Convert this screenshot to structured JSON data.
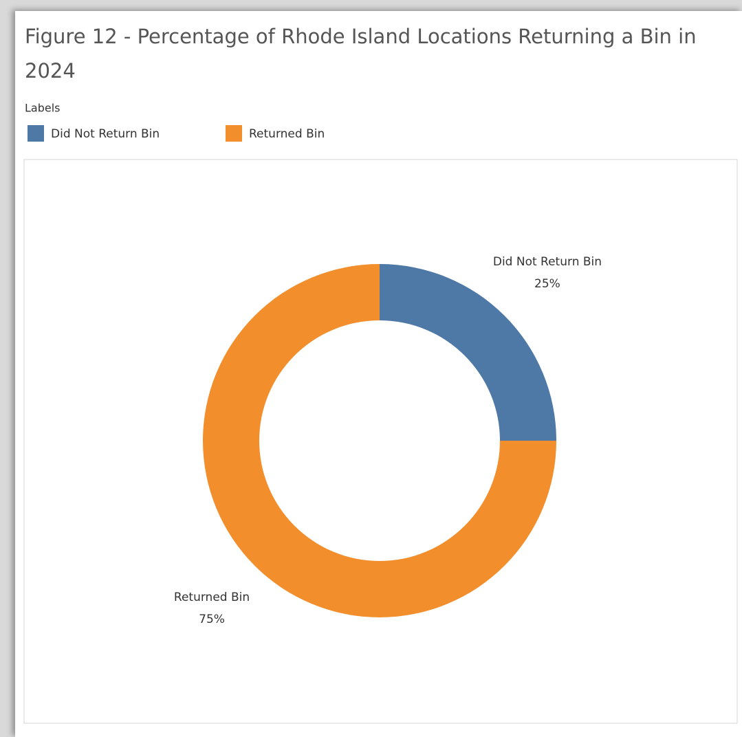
{
  "chart_data": {
    "type": "pie",
    "title": "Figure 12 - Percentage of Rhode Island Locations Returning a Bin in 2024",
    "legend_title": "Labels",
    "categories": [
      "Did Not Return Bin",
      "Returned Bin"
    ],
    "values": [
      25,
      75
    ],
    "value_labels": [
      "25%",
      "75%"
    ],
    "colors": [
      "#4e79a7",
      "#f28e2b"
    ],
    "donut": true
  }
}
